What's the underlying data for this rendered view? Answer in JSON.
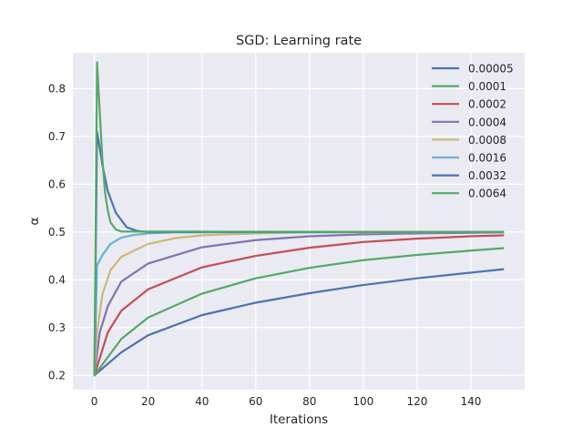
{
  "chart_data": {
    "type": "line",
    "title": "SGD: Learning rate",
    "xlabel": "Iterations",
    "ylabel": "α",
    "xlim": [
      -8,
      160
    ],
    "ylim": [
      0.17,
      0.875
    ],
    "xticks": [
      0,
      20,
      40,
      60,
      80,
      100,
      120,
      140
    ],
    "yticks": [
      0.2,
      0.3,
      0.4,
      0.5,
      0.6,
      0.7,
      0.8
    ],
    "x_max": 152,
    "grid": true,
    "legend_position": "top-right",
    "background_color": "#EAEAF2",
    "series": [
      {
        "name": "0.00005",
        "color": "#4C72B0",
        "points": [
          [
            0,
            0.2
          ],
          [
            10,
            0.248
          ],
          [
            20,
            0.284
          ],
          [
            40,
            0.326
          ],
          [
            60,
            0.352
          ],
          [
            80,
            0.372
          ],
          [
            100,
            0.389
          ],
          [
            120,
            0.403
          ],
          [
            140,
            0.415
          ],
          [
            152,
            0.422
          ]
        ]
      },
      {
        "name": "0.0001",
        "color": "#55A868",
        "points": [
          [
            0,
            0.2
          ],
          [
            10,
            0.276
          ],
          [
            20,
            0.321
          ],
          [
            40,
            0.371
          ],
          [
            60,
            0.403
          ],
          [
            80,
            0.425
          ],
          [
            100,
            0.441
          ],
          [
            120,
            0.452
          ],
          [
            140,
            0.461
          ],
          [
            152,
            0.466
          ]
        ]
      },
      {
        "name": "0.0002",
        "color": "#C44E52",
        "points": [
          [
            0,
            0.2
          ],
          [
            5,
            0.29
          ],
          [
            10,
            0.335
          ],
          [
            20,
            0.38
          ],
          [
            40,
            0.426
          ],
          [
            60,
            0.45
          ],
          [
            80,
            0.467
          ],
          [
            100,
            0.479
          ],
          [
            120,
            0.486
          ],
          [
            140,
            0.491
          ],
          [
            152,
            0.493
          ]
        ]
      },
      {
        "name": "0.0004",
        "color": "#8172B2",
        "points": [
          [
            0,
            0.2
          ],
          [
            2,
            0.29
          ],
          [
            5,
            0.345
          ],
          [
            10,
            0.396
          ],
          [
            20,
            0.434
          ],
          [
            40,
            0.468
          ],
          [
            60,
            0.483
          ],
          [
            80,
            0.491
          ],
          [
            100,
            0.495
          ],
          [
            120,
            0.497
          ],
          [
            152,
            0.499
          ]
        ]
      },
      {
        "name": "0.0008",
        "color": "#CCB974",
        "points": [
          [
            0,
            0.2
          ],
          [
            1,
            0.29
          ],
          [
            3,
            0.37
          ],
          [
            6,
            0.42
          ],
          [
            10,
            0.448
          ],
          [
            20,
            0.475
          ],
          [
            30,
            0.487
          ],
          [
            40,
            0.493
          ],
          [
            60,
            0.497
          ],
          [
            80,
            0.499
          ],
          [
            152,
            0.5
          ]
        ]
      },
      {
        "name": "0.0016",
        "color": "#64B5CD",
        "points": [
          [
            0,
            0.2
          ],
          [
            1,
            0.43
          ],
          [
            3,
            0.452
          ],
          [
            6,
            0.475
          ],
          [
            10,
            0.488
          ],
          [
            15,
            0.494
          ],
          [
            20,
            0.497
          ],
          [
            30,
            0.499
          ],
          [
            152,
            0.5
          ]
        ]
      },
      {
        "name": "0.0032",
        "color": "#4C72B0",
        "points": [
          [
            0,
            0.2
          ],
          [
            1,
            0.71
          ],
          [
            3,
            0.64
          ],
          [
            5,
            0.585
          ],
          [
            8,
            0.54
          ],
          [
            12,
            0.51
          ],
          [
            16,
            0.502
          ],
          [
            20,
            0.5
          ],
          [
            152,
            0.5
          ]
        ]
      },
      {
        "name": "0.0064",
        "color": "#55A868",
        "points": [
          [
            0,
            0.2
          ],
          [
            1,
            0.855
          ],
          [
            2,
            0.75
          ],
          [
            3,
            0.65
          ],
          [
            4,
            0.58
          ],
          [
            5,
            0.545
          ],
          [
            6,
            0.52
          ],
          [
            8,
            0.505
          ],
          [
            10,
            0.501
          ],
          [
            152,
            0.5
          ]
        ]
      }
    ]
  }
}
